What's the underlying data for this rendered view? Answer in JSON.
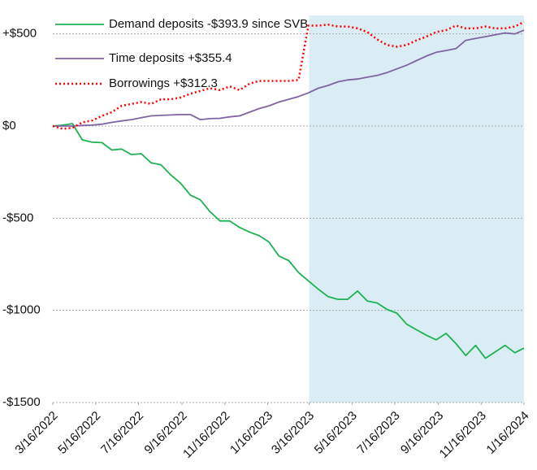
{
  "chart_data": {
    "type": "line",
    "x": [
      "3/16/2022",
      "3/30/2022",
      "4/13/2022",
      "4/27/2022",
      "5/11/2022",
      "5/25/2022",
      "6/8/2022",
      "6/22/2022",
      "7/6/2022",
      "7/20/2022",
      "8/3/2022",
      "8/17/2022",
      "8/31/2022",
      "9/14/2022",
      "9/28/2022",
      "10/12/2022",
      "10/26/2022",
      "11/9/2022",
      "11/23/2022",
      "12/7/2022",
      "12/21/2022",
      "1/4/2023",
      "1/18/2023",
      "2/1/2023",
      "2/15/2023",
      "3/1/2023",
      "3/15/2023",
      "3/29/2023",
      "4/12/2023",
      "4/26/2023",
      "5/10/2023",
      "5/24/2023",
      "6/7/2023",
      "6/21/2023",
      "7/5/2023",
      "7/19/2023",
      "8/2/2023",
      "8/16/2023",
      "8/30/2023",
      "9/13/2023",
      "9/27/2023",
      "10/11/2023",
      "10/25/2023",
      "11/8/2023",
      "11/22/2023",
      "12/6/2023",
      "12/20/2023",
      "1/3/2024",
      "1/16/2024"
    ],
    "series": [
      {
        "name": "Demand deposits -$393.9 since SVB",
        "color": "#1fb254",
        "style": "solid",
        "values": [
          0,
          5,
          13,
          -75,
          -88,
          -90,
          -130,
          -125,
          -155,
          -150,
          -200,
          -210,
          -265,
          -310,
          -375,
          -400,
          -465,
          -515,
          -515,
          -550,
          -575,
          -595,
          -630,
          -705,
          -730,
          -795,
          -840,
          -885,
          -925,
          -940,
          -940,
          -895,
          -950,
          -960,
          -995,
          -1015,
          -1075,
          -1105,
          -1135,
          -1160,
          -1125,
          -1180,
          -1245,
          -1190,
          -1260,
          -1225,
          -1190,
          -1230,
          -1205
        ]
      },
      {
        "name": "Time deposits +$355.4",
        "color": "#8064a2",
        "style": "solid",
        "values": [
          0,
          0,
          0,
          3,
          5,
          10,
          20,
          28,
          35,
          45,
          55,
          58,
          60,
          62,
          62,
          35,
          40,
          42,
          50,
          55,
          75,
          95,
          110,
          130,
          145,
          160,
          180,
          205,
          220,
          240,
          250,
          255,
          265,
          275,
          290,
          310,
          330,
          355,
          380,
          400,
          410,
          420,
          465,
          475,
          485,
          495,
          505,
          500,
          520
        ]
      },
      {
        "name": "Borrowings +$312.3",
        "color": "#ff0000",
        "style": "dotted",
        "values": [
          0,
          -15,
          -10,
          20,
          30,
          55,
          75,
          110,
          120,
          130,
          120,
          145,
          145,
          155,
          175,
          190,
          205,
          195,
          215,
          195,
          230,
          245,
          245,
          245,
          245,
          250,
          545,
          545,
          550,
          540,
          540,
          530,
          510,
          470,
          440,
          430,
          440,
          465,
          485,
          510,
          520,
          545,
          530,
          530,
          540,
          530,
          530,
          540,
          565
        ]
      }
    ],
    "xlim": [
      "3/16/2022",
      "1/16/2024"
    ],
    "xticks": [
      "3/16/2022",
      "5/16/2022",
      "7/16/2022",
      "9/16/2022",
      "11/16/2022",
      "1/16/2023",
      "3/16/2023",
      "5/16/2023",
      "7/16/2023",
      "9/16/2023",
      "11/16/2023",
      "1/16/2024"
    ],
    "ylim": [
      -1500,
      600
    ],
    "yticks": [
      {
        "value": -1500,
        "label": "-$1500"
      },
      {
        "value": -1000,
        "label": "-$1000"
      },
      {
        "value": -500,
        "label": "-$500"
      },
      {
        "value": 0,
        "label": "$0"
      },
      {
        "value": 500,
        "label": "+$500"
      }
    ],
    "grid": true,
    "highlight": {
      "from": "3/16/2023",
      "to": "1/16/2024",
      "color": "#daedf4"
    }
  }
}
